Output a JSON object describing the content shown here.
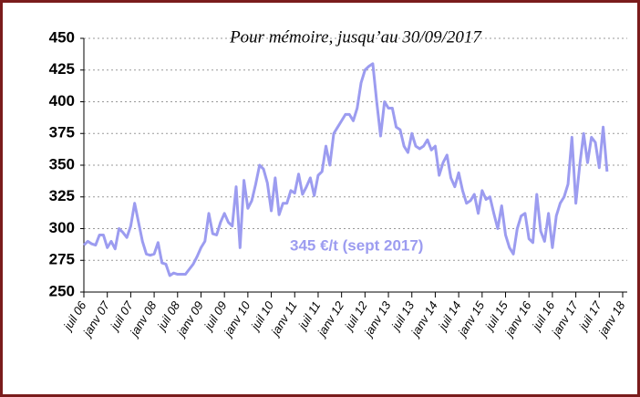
{
  "chart_data": {
    "type": "line",
    "annotations": [
      "Pour mémoire, jusqu’au 30/09/2017",
      "345 €/t (sept 2017)"
    ],
    "categories": [
      "juil 06",
      null,
      null,
      null,
      null,
      null,
      "janv 07",
      null,
      null,
      null,
      null,
      null,
      "juil 07",
      null,
      null,
      null,
      null,
      null,
      "janv 08",
      null,
      null,
      null,
      null,
      null,
      "juil 08",
      null,
      null,
      null,
      null,
      null,
      "janv 09",
      null,
      null,
      null,
      null,
      null,
      "juil 09",
      null,
      null,
      null,
      null,
      null,
      "janv 10",
      null,
      null,
      null,
      null,
      null,
      "juil 10",
      null,
      null,
      null,
      null,
      null,
      "janv 11",
      null,
      null,
      null,
      null,
      null,
      "juil 11",
      null,
      null,
      null,
      null,
      null,
      "janv 12",
      null,
      null,
      null,
      null,
      null,
      "juil 12",
      null,
      null,
      null,
      null,
      null,
      "janv 13",
      null,
      null,
      null,
      null,
      null,
      "juil 13",
      null,
      null,
      null,
      null,
      null,
      "janv 14",
      null,
      null,
      null,
      null,
      null,
      "juil 14",
      null,
      null,
      null,
      null,
      null,
      "janv 15",
      null,
      null,
      null,
      null,
      null,
      "juil 15",
      null,
      null,
      null,
      null,
      null,
      "janv 16",
      null,
      null,
      null,
      null,
      null,
      "juil 16",
      null,
      null,
      null,
      null,
      null,
      "janv 17",
      null,
      null,
      null,
      null,
      null,
      "juil 17",
      null,
      null,
      null,
      null,
      null,
      "janv 18"
    ],
    "series": [
      {
        "color": "#9c9cf0",
        "values": [
          287,
          290,
          288,
          287,
          295,
          295,
          285,
          290,
          284,
          300,
          297,
          293,
          302,
          320,
          305,
          290,
          280,
          279,
          280,
          289,
          273,
          272,
          263,
          265,
          264,
          264,
          264,
          268,
          272,
          278,
          285,
          290,
          312,
          296,
          295,
          305,
          312,
          305,
          302,
          333,
          285,
          338,
          316,
          322,
          335,
          350,
          347,
          336,
          314,
          340,
          311,
          320,
          320,
          330,
          328,
          343,
          327,
          333,
          340,
          326,
          342,
          345,
          365,
          350,
          375,
          380,
          385,
          390,
          390,
          385,
          395,
          415,
          425,
          428,
          430,
          400,
          373,
          400,
          395,
          395,
          380,
          378,
          365,
          360,
          375,
          365,
          363,
          365,
          370,
          362,
          365,
          342,
          352,
          358,
          340,
          333,
          344,
          330,
          320,
          322,
          327,
          312,
          330,
          323,
          325,
          312,
          300,
          318,
          295,
          285,
          280,
          300,
          310,
          312,
          292,
          289,
          327,
          298,
          290,
          312,
          285,
          310,
          320,
          325,
          335,
          372,
          320,
          350,
          375,
          352,
          372,
          368,
          348,
          380,
          345,
          null,
          null,
          null,
          null
        ]
      }
    ],
    "ylim": [
      250,
      450
    ],
    "yticks": [
      250,
      275,
      300,
      325,
      350,
      375,
      400,
      425,
      450
    ],
    "grid": true
  }
}
